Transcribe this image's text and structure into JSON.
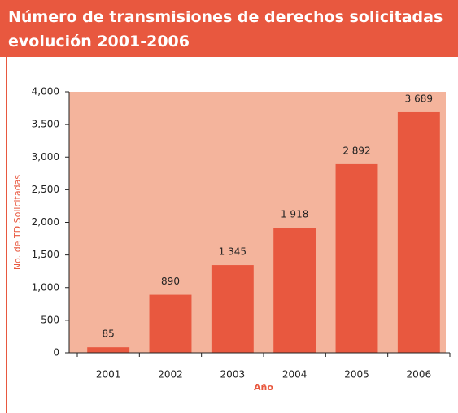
{
  "chart_data": {
    "type": "bar",
    "title": "Número de transmisiones de derechos solicitadas evolución 2001-2006",
    "xlabel": "Año",
    "ylabel": "No. de TD Solicitadas",
    "categories": [
      "2001",
      "2002",
      "2003",
      "2004",
      "2005",
      "2006"
    ],
    "values": [
      85,
      890,
      1345,
      1918,
      2892,
      3689
    ],
    "value_labels": [
      "85",
      "890",
      "1 345",
      "1 918",
      "2 892",
      "3 689"
    ],
    "color": "#e8583f",
    "background": "#f4b49c",
    "ylim": [
      0,
      4000
    ],
    "yticks": [
      0,
      {
        "value": 500,
        "label": "500"
      },
      {
        "value": 1000,
        "label": "1,000"
      },
      {
        "value": 1500,
        "label": "1,500"
      },
      {
        "value": 2000,
        "label": "2,000"
      },
      {
        "value": 2500,
        "label": "2,500"
      },
      {
        "value": 3000,
        "label": "3,000"
      },
      {
        "value": 3500,
        "label": "3,500"
      },
      {
        "value": 4000,
        "label": "4,000"
      }
    ]
  }
}
